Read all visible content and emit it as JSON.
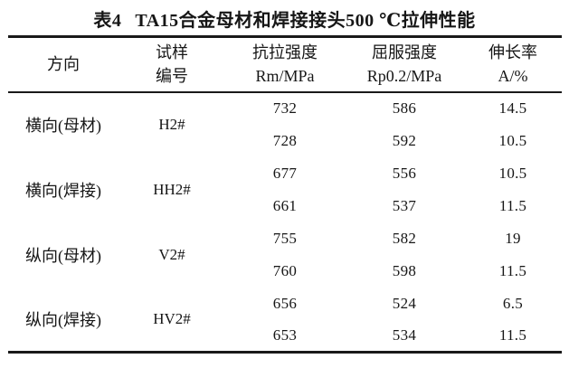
{
  "table": {
    "caption_label": "表4",
    "caption_text": "TA15合金母材和焊接接头500 ℃拉伸性能",
    "columns": [
      {
        "name": "方向",
        "unit": ""
      },
      {
        "name": "试样",
        "unit": "编号"
      },
      {
        "name": "抗拉强度",
        "unit": "Rm/MPa"
      },
      {
        "name": "屈服强度",
        "unit": "Rp0.2/MPa"
      },
      {
        "name": "伸长率",
        "unit": "A/%"
      }
    ],
    "groups": [
      {
        "direction": "横向(母材)",
        "sample_id": "H2#",
        "rows": [
          [
            "732",
            "586",
            "14.5"
          ],
          [
            "728",
            "592",
            "10.5"
          ]
        ]
      },
      {
        "direction": "横向(焊接)",
        "sample_id": "HH2#",
        "rows": [
          [
            "677",
            "556",
            "10.5"
          ],
          [
            "661",
            "537",
            "11.5"
          ]
        ]
      },
      {
        "direction": "纵向(母材)",
        "sample_id": "V2#",
        "rows": [
          [
            "755",
            "582",
            "19"
          ],
          [
            "760",
            "598",
            "11.5"
          ]
        ]
      },
      {
        "direction": "纵向(焊接)",
        "sample_id": "HV2#",
        "rows": [
          [
            "656",
            "524",
            "6.5"
          ],
          [
            "653",
            "534",
            "11.5"
          ]
        ]
      }
    ]
  },
  "chart_data": {
    "type": "table",
    "title": "表4 TA15合金母材和焊接接头500 ℃拉伸性能",
    "columns": [
      "方向",
      "试样编号",
      "抗拉强度 Rm/MPa",
      "屈服强度 Rp0.2/MPa",
      "伸长率 A/%"
    ],
    "rows": [
      [
        "横向(母材)",
        "H2#",
        732,
        586,
        14.5
      ],
      [
        "横向(母材)",
        "H2#",
        728,
        592,
        10.5
      ],
      [
        "横向(焊接)",
        "HH2#",
        677,
        556,
        10.5
      ],
      [
        "横向(焊接)",
        "HH2#",
        661,
        537,
        11.5
      ],
      [
        "纵向(母材)",
        "V2#",
        755,
        582,
        19
      ],
      [
        "纵向(母材)",
        "V2#",
        760,
        598,
        11.5
      ],
      [
        "纵向(焊接)",
        "HV2#",
        656,
        524,
        6.5
      ],
      [
        "纵向(焊接)",
        "HV2#",
        653,
        534,
        11.5
      ]
    ]
  }
}
